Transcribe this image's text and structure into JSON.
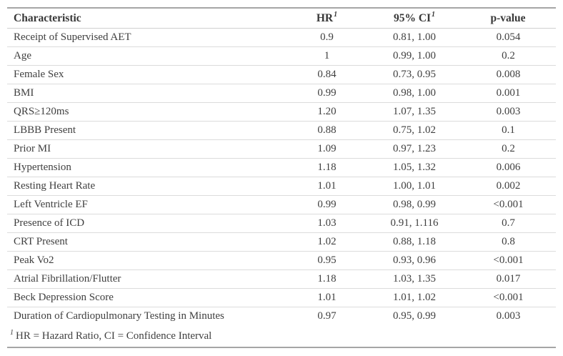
{
  "table": {
    "columns": [
      {
        "label": "Characteristic",
        "marker": ""
      },
      {
        "label": "HR",
        "marker": "1"
      },
      {
        "label": "95% CI",
        "marker": "1"
      },
      {
        "label": "p-value",
        "marker": ""
      }
    ],
    "rows": [
      [
        "Receipt of Supervised AET",
        "0.9",
        "0.81, 1.00",
        "0.054"
      ],
      [
        "Age",
        "1",
        "0.99, 1.00",
        "0.2"
      ],
      [
        "Female Sex",
        "0.84",
        "0.73, 0.95",
        "0.008"
      ],
      [
        "BMI",
        "0.99",
        "0.98, 1.00",
        "0.001"
      ],
      [
        "QRS≥120ms",
        "1.20",
        "1.07, 1.35",
        "0.003"
      ],
      [
        "LBBB Present",
        "0.88",
        "0.75, 1.02",
        "0.1"
      ],
      [
        "Prior MI",
        "1.09",
        "0.97, 1.23",
        "0.2"
      ],
      [
        "Hypertension",
        "1.18",
        "1.05, 1.32",
        "0.006"
      ],
      [
        "Resting Heart Rate",
        "1.01",
        "1.00, 1.01",
        "0.002"
      ],
      [
        "Left Ventricle EF",
        "0.99",
        "0.98, 0.99",
        "<0.001"
      ],
      [
        "Presence of ICD",
        "1.03",
        "0.91, 1.116",
        "0.7"
      ],
      [
        "CRT Present",
        "1.02",
        "0.88, 1.18",
        "0.8"
      ],
      [
        "Peak Vo2",
        "0.95",
        "0.93, 0.96",
        "<0.001"
      ],
      [
        "Atrial Fibrillation/Flutter",
        "1.18",
        "1.03, 1.35",
        "0.017"
      ],
      [
        "Beck Depression Score",
        "1.01",
        "1.01, 1.02",
        "<0.001"
      ],
      [
        "Duration of Cardiopulmonary Testing in Minutes",
        "0.97",
        "0.95, 0.99",
        "0.003"
      ]
    ],
    "footnote": {
      "marker": "1",
      "text": "HR = Hazard Ratio, CI = Confidence Interval"
    }
  },
  "colors": {
    "text": "#3f3f3f",
    "outer_rule": "#a6a6a6",
    "header_rule": "#cfcfcf",
    "row_rule": "#dcdcdc",
    "background": "#ffffff"
  }
}
